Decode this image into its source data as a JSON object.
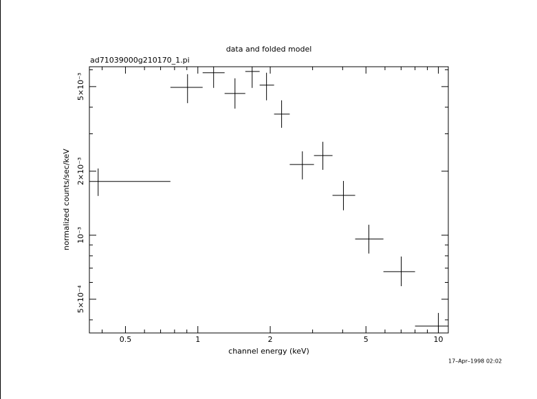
{
  "chart_data": {
    "type": "errorbar",
    "title": "data and folded model",
    "subtitle": "ad71039000g210170_1.pi",
    "x_label": "channel energy (keV)",
    "y_label": "normalized counts/sec/keV",
    "timestamp": "17–Apr–1998 02:02",
    "log_x": true,
    "log_y": true,
    "color": "#000000",
    "xlim": [
      0.354,
      11
    ],
    "ylim": [
      0.000347,
      0.0062
    ],
    "xticks": [
      0.5,
      1,
      2,
      5,
      10
    ],
    "xminorticks": [
      0.4,
      0.6,
      0.7,
      0.8,
      0.9,
      3,
      4,
      6,
      7,
      8,
      9
    ],
    "yticks": [
      {
        "value": 0.0005,
        "label": "5×10⁻⁴"
      },
      {
        "value": 0.001,
        "label": "10⁻³"
      },
      {
        "value": 0.002,
        "label": "2×10⁻³"
      },
      {
        "value": 0.005,
        "label": "5×10⁻³"
      }
    ],
    "yminorticks": [
      0.0004,
      0.0006,
      0.0007,
      0.0008,
      0.0009,
      0.003,
      0.004,
      0.006
    ],
    "x": [
      0.385,
      0.906,
      1.163,
      1.427,
      1.682,
      1.93,
      2.23,
      2.72,
      3.31,
      4.03,
      5.14,
      7.01,
      10.0
    ],
    "x_low": [
      0.354,
      0.769,
      1.047,
      1.292,
      1.575,
      1.807,
      2.075,
      2.41,
      3.04,
      3.63,
      4.51,
      5.91,
      8.0
    ],
    "x_high": [
      0.769,
      1.047,
      1.292,
      1.575,
      1.807,
      2.075,
      2.41,
      3.04,
      3.63,
      4.51,
      5.91,
      8.0,
      11
    ],
    "values": [
      0.00179,
      0.00496,
      0.00581,
      0.00464,
      0.00589,
      0.00508,
      0.00371,
      0.00215,
      0.00237,
      0.00154,
      0.00096,
      0.000674,
      0.000374
    ],
    "y_low": [
      0.00153,
      0.00418,
      0.00493,
      0.00394,
      0.00493,
      0.00431,
      0.0032,
      0.00183,
      0.00203,
      0.00131,
      0.00082,
      0.000576,
      0.00033
    ],
    "y_high": [
      0.00206,
      0.00572,
      0.0067,
      0.00547,
      0.0068,
      0.00581,
      0.00431,
      0.00248,
      0.00275,
      0.0018,
      0.00112,
      0.000794,
      0.000431
    ]
  }
}
